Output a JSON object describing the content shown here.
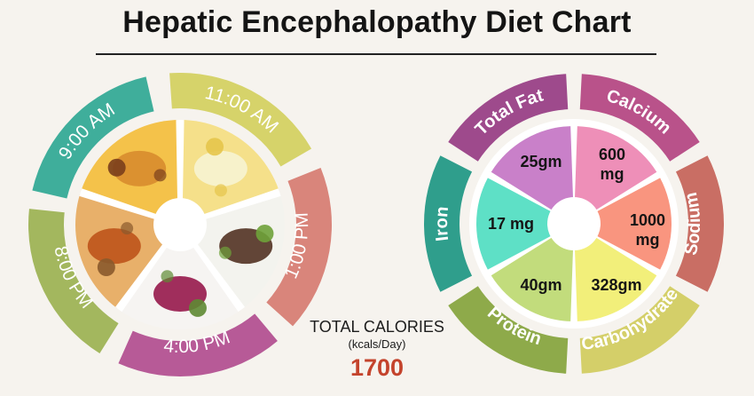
{
  "title": "Hepatic Encephalopathy Diet Chart",
  "meals": [
    {
      "time": "9:00 AM",
      "color": "#3fae9b",
      "food": "dosa-with-chutneys-icon"
    },
    {
      "time": "11:00 AM",
      "color": "#d6d36a",
      "food": "banana-slices-icon"
    },
    {
      "time": "1:00 PM",
      "color": "#d9857b",
      "food": "rice-bowl-icon"
    },
    {
      "time": "4:00 PM",
      "color": "#b75a97",
      "food": "beet-salad-icon"
    },
    {
      "time": "8:00 PM",
      "color": "#a3b75e",
      "food": "curry-with-roti-icon"
    }
  ],
  "nutrients": [
    {
      "name": "Total Fat",
      "value": "25gm",
      "ring_color": "#9e4a8c",
      "fill_color": "#c980c9"
    },
    {
      "name": "Calcium",
      "value": "600 mg",
      "ring_color": "#b9528a",
      "fill_color": "#ee8fb8"
    },
    {
      "name": "Sodium",
      "value": "1000 mg",
      "ring_color": "#c96e64",
      "fill_color": "#f9957f"
    },
    {
      "name": "Carbohydrate",
      "value": "328gm",
      "ring_color": "#d4cf69",
      "fill_color": "#f2ef7a"
    },
    {
      "name": "Protein",
      "value": "40gm",
      "ring_color": "#8eaa4a",
      "fill_color": "#c2dc7c"
    },
    {
      "name": "Iron",
      "value": "17 mg",
      "ring_color": "#2f9e8c",
      "fill_color": "#5ee0c6"
    }
  ],
  "total": {
    "label": "TOTAL CALORIES",
    "unit": "(kcals/Day)",
    "value": "1700"
  }
}
